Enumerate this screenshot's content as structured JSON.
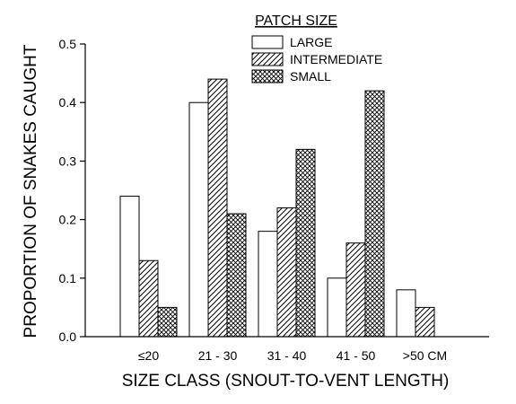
{
  "chart_data": {
    "type": "bar",
    "title": "",
    "xlabel": "SIZE CLASS (SNOUT-TO-VENT LENGTH)",
    "ylabel": "PROPORTION OF SNAKES CAUGHT",
    "ylim": [
      0,
      0.5
    ],
    "yticks": [
      "0.0",
      "0.1",
      "0.2",
      "0.3",
      "0.4",
      "0.5"
    ],
    "categories": [
      "≤20",
      "21 - 30",
      "31 - 40",
      "41 - 50",
      ">50 CM"
    ],
    "legend_title": "PATCH SIZE",
    "legend_position": "top-right",
    "grid": false,
    "series": [
      {
        "name": "LARGE",
        "values": [
          0.24,
          0.4,
          0.18,
          0.1,
          0.08
        ],
        "fill": "none"
      },
      {
        "name": "INTERMEDIATE",
        "values": [
          0.13,
          0.44,
          0.22,
          0.16,
          0.05
        ],
        "fill": "diagonal-hatch"
      },
      {
        "name": "SMALL",
        "values": [
          0.05,
          0.21,
          0.32,
          0.42,
          0.0
        ],
        "fill": "cross-hatch"
      }
    ]
  }
}
